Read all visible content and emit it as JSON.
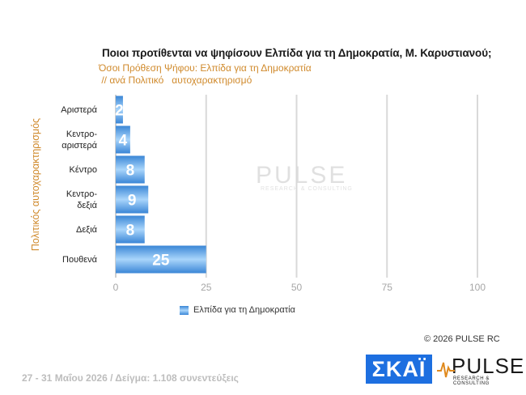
{
  "title": "Ποιοι προτίθενται να ψηφίσουν Ελπίδα για τη Δημοκρατία, Μ. Καρυστιανού;",
  "subtitle": "Όσοι Πρόθεση Ψήφου: Ελπίδα για τη Δημοκρατία\n // ανά Πολιτικό   αυτοχαρακτηρισμό",
  "watermark": {
    "brand": "PULSE",
    "tagline": "RESEARCH & CONSULTING"
  },
  "copyright": "© 2026 PULSE RC",
  "footer": "27 - 31 Μαΐου 2026  /  Δείγμα:  1.108 συνεντεύξεις",
  "logos": {
    "skai": "ΣΚΑΪ",
    "pulse": "PULSE",
    "pulse_tagline": "RESEARCH & CONSULTING"
  },
  "colors": {
    "bar_edge": "#3a86d6",
    "bar_center": "#a9d5fb",
    "accent": "#d08a2c"
  },
  "chart_data": {
    "type": "bar",
    "orientation": "horizontal",
    "ylabel": "Πολιτικός αυτοχαρακτηρισμός",
    "categories": [
      "Αριστερά",
      "Κεντρο-\nαριστερά",
      "Κέντρο",
      "Κεντρο-\nδεξιά",
      "Δεξιά",
      "Πουθενά"
    ],
    "series": [
      {
        "name": "Ελπίδα για τη Δημοκρατία",
        "values": [
          2,
          4,
          8,
          9,
          8,
          25
        ]
      }
    ],
    "xlim": [
      0,
      100
    ],
    "xticks": [
      0,
      25,
      50,
      75,
      100
    ],
    "grid": true,
    "legend": "bottom-left"
  }
}
